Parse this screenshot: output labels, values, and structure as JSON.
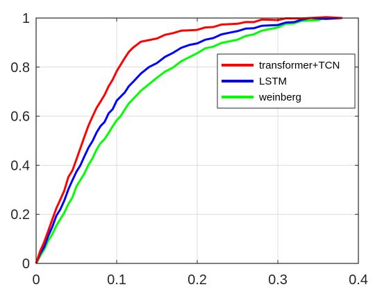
{
  "chart_data": {
    "type": "line",
    "title": "",
    "xlabel": "",
    "ylabel": "",
    "xlim": [
      0,
      0.4
    ],
    "ylim": [
      0,
      1
    ],
    "x_ticks": [
      "0",
      "0.1",
      "0.2",
      "0.3",
      "0.4"
    ],
    "y_ticks": [
      "0",
      "0.2",
      "0.4",
      "0.6",
      "0.8",
      "1"
    ],
    "grid": true,
    "legend_position": "top-right",
    "series": [
      {
        "name": "transformer+TCN",
        "color": "#ff0000",
        "x": [
          0,
          0.005,
          0.01,
          0.015,
          0.02,
          0.025,
          0.03,
          0.035,
          0.04,
          0.045,
          0.05,
          0.055,
          0.06,
          0.065,
          0.07,
          0.075,
          0.08,
          0.085,
          0.09,
          0.095,
          0.1,
          0.105,
          0.11,
          0.115,
          0.12,
          0.13,
          0.14,
          0.15,
          0.16,
          0.17,
          0.18,
          0.19,
          0.2,
          0.21,
          0.22,
          0.23,
          0.24,
          0.25,
          0.26,
          0.27,
          0.28,
          0.29,
          0.3,
          0.31,
          0.33,
          0.36,
          0.38
        ],
        "y": [
          0,
          0.05,
          0.09,
          0.13,
          0.18,
          0.22,
          0.26,
          0.3,
          0.35,
          0.38,
          0.42,
          0.47,
          0.52,
          0.56,
          0.6,
          0.63,
          0.66,
          0.69,
          0.72,
          0.75,
          0.78,
          0.81,
          0.84,
          0.86,
          0.88,
          0.9,
          0.91,
          0.92,
          0.93,
          0.94,
          0.945,
          0.95,
          0.955,
          0.96,
          0.965,
          0.97,
          0.975,
          0.98,
          0.982,
          0.985,
          0.99,
          0.993,
          0.995,
          0.997,
          1.0,
          1.0,
          1.0
        ]
      },
      {
        "name": "LSTM",
        "color": "#0000ff",
        "x": [
          0,
          0.005,
          0.01,
          0.015,
          0.02,
          0.025,
          0.03,
          0.035,
          0.04,
          0.045,
          0.05,
          0.055,
          0.06,
          0.065,
          0.07,
          0.075,
          0.08,
          0.085,
          0.09,
          0.095,
          0.1,
          0.105,
          0.11,
          0.115,
          0.12,
          0.13,
          0.14,
          0.15,
          0.16,
          0.17,
          0.18,
          0.19,
          0.2,
          0.21,
          0.22,
          0.23,
          0.24,
          0.25,
          0.26,
          0.27,
          0.28,
          0.29,
          0.3,
          0.31,
          0.32,
          0.33,
          0.34,
          0.36,
          0.38
        ],
        "y": [
          0,
          0.04,
          0.07,
          0.11,
          0.15,
          0.19,
          0.22,
          0.26,
          0.3,
          0.34,
          0.37,
          0.4,
          0.44,
          0.47,
          0.5,
          0.53,
          0.56,
          0.58,
          0.61,
          0.63,
          0.66,
          0.68,
          0.7,
          0.72,
          0.74,
          0.77,
          0.8,
          0.82,
          0.84,
          0.86,
          0.875,
          0.89,
          0.9,
          0.91,
          0.92,
          0.93,
          0.94,
          0.95,
          0.955,
          0.96,
          0.965,
          0.97,
          0.975,
          0.98,
          0.985,
          0.99,
          1.0,
          1.0,
          1.0
        ]
      },
      {
        "name": "weinberg",
        "color": "#00ff00",
        "x": [
          0,
          0.005,
          0.01,
          0.015,
          0.02,
          0.025,
          0.03,
          0.035,
          0.04,
          0.045,
          0.05,
          0.055,
          0.06,
          0.065,
          0.07,
          0.075,
          0.08,
          0.085,
          0.09,
          0.095,
          0.1,
          0.105,
          0.11,
          0.115,
          0.12,
          0.13,
          0.14,
          0.15,
          0.16,
          0.17,
          0.18,
          0.19,
          0.2,
          0.21,
          0.22,
          0.23,
          0.24,
          0.25,
          0.26,
          0.27,
          0.28,
          0.29,
          0.3,
          0.31,
          0.32,
          0.33,
          0.34,
          0.35,
          0.36,
          0.375
        ],
        "y": [
          0,
          0.03,
          0.06,
          0.09,
          0.12,
          0.15,
          0.18,
          0.21,
          0.24,
          0.27,
          0.31,
          0.34,
          0.37,
          0.4,
          0.43,
          0.46,
          0.49,
          0.51,
          0.53,
          0.56,
          0.58,
          0.6,
          0.63,
          0.65,
          0.67,
          0.7,
          0.73,
          0.76,
          0.78,
          0.8,
          0.82,
          0.84,
          0.86,
          0.875,
          0.885,
          0.895,
          0.905,
          0.915,
          0.925,
          0.935,
          0.945,
          0.955,
          0.965,
          0.975,
          0.98,
          0.985,
          0.99,
          0.995,
          1.0,
          1.0
        ]
      }
    ]
  }
}
